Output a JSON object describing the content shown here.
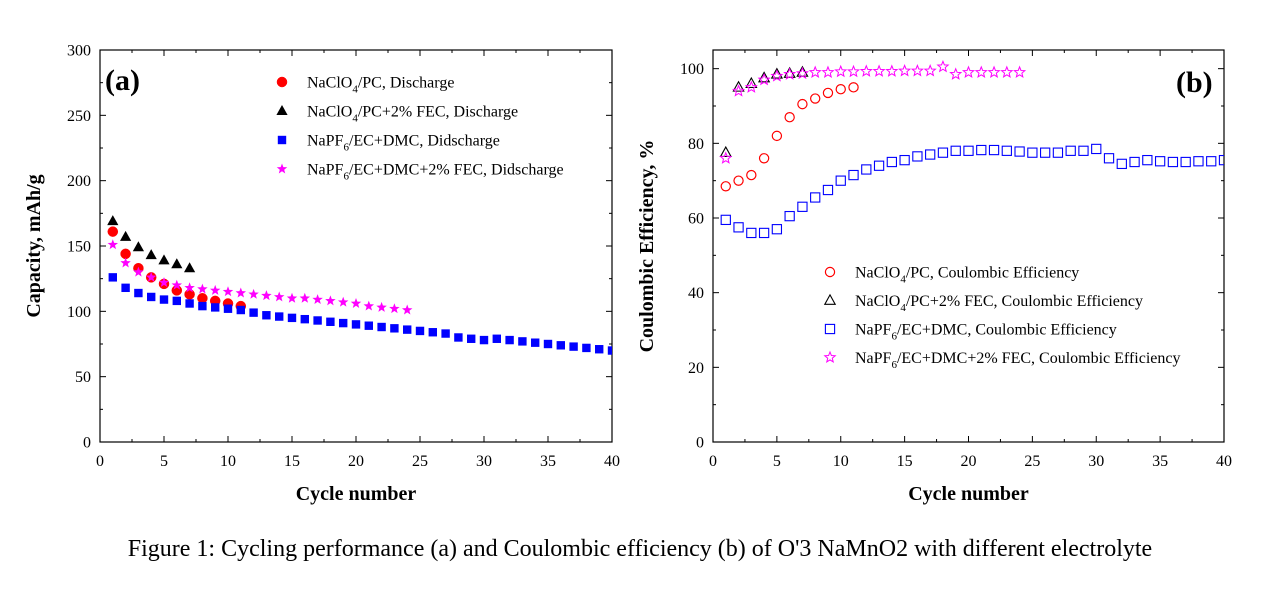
{
  "figure": {
    "caption": "Figure 1: Cycling performance (a) and Coulombic efficiency (b) of O'3 NaMnO2 with different electrolyte"
  },
  "chart_data": [
    {
      "id": "a",
      "type": "scatter",
      "panel_label": "(a)",
      "xlabel": "Cycle number",
      "ylabel": "Capacity, mAh/g",
      "xlim": [
        0,
        40
      ],
      "ylim": [
        0,
        300
      ],
      "xticks": [
        0,
        5,
        10,
        15,
        20,
        25,
        30,
        35,
        40
      ],
      "yticks": [
        0,
        50,
        100,
        150,
        200,
        250,
        300
      ],
      "legend_position": "top-right",
      "grid": false,
      "series": [
        {
          "name": "NaClO4/PC, Discharge",
          "name_parts": {
            "pre": "NaClO",
            "sub": "4",
            "post": "/PC, Discharge"
          },
          "marker": "circle-filled",
          "color": "#ff0000",
          "x": [
            1,
            2,
            3,
            4,
            5,
            6,
            7,
            8,
            9,
            10,
            11
          ],
          "y": [
            161,
            144,
            133,
            126,
            121,
            116,
            113,
            110,
            108,
            106,
            104
          ]
        },
        {
          "name": "NaClO4/PC+2% FEC, Discharge",
          "name_parts": {
            "pre": "NaClO",
            "sub": "4",
            "post": "/PC+2% FEC, Discharge"
          },
          "marker": "triangle-filled",
          "color": "#000000",
          "x": [
            1,
            2,
            3,
            4,
            5,
            6,
            7
          ],
          "y": [
            169,
            157,
            149,
            143,
            139,
            136,
            133
          ]
        },
        {
          "name": "NaPF6/EC+DMC, Didscharge",
          "name_parts": {
            "pre": "NaPF",
            "sub": "6",
            "post": "/EC+DMC, Didscharge"
          },
          "marker": "square-filled",
          "color": "#0000ff",
          "x": [
            1,
            2,
            3,
            4,
            5,
            6,
            7,
            8,
            9,
            10,
            11,
            12,
            13,
            14,
            15,
            16,
            17,
            18,
            19,
            20,
            21,
            22,
            23,
            24,
            25,
            26,
            27,
            28,
            29,
            30,
            31,
            32,
            33,
            34,
            35,
            36,
            37,
            38,
            39,
            40
          ],
          "y": [
            126,
            118,
            114,
            111,
            109,
            108,
            106,
            104,
            103,
            102,
            101,
            99,
            97,
            96,
            95,
            94,
            93,
            92,
            91,
            90,
            89,
            88,
            87,
            86,
            85,
            84,
            83,
            80,
            79,
            78,
            79,
            78,
            77,
            76,
            75,
            74,
            73,
            72,
            71,
            70
          ]
        },
        {
          "name": "NaPF6/EC+DMC+2% FEC, Didscharge",
          "name_parts": {
            "pre": "NaPF",
            "sub": "6",
            "post": "/EC+DMC+2% FEC, Didscharge"
          },
          "marker": "star",
          "color": "#ff00ff",
          "x": [
            1,
            2,
            3,
            4,
            5,
            6,
            7,
            8,
            9,
            10,
            11,
            12,
            13,
            14,
            15,
            16,
            17,
            18,
            19,
            20,
            21,
            22,
            23,
            24
          ],
          "y": [
            151,
            137,
            130,
            126,
            122,
            120,
            118,
            117,
            116,
            115,
            114,
            113,
            112,
            111,
            110,
            110,
            109,
            108,
            107,
            106,
            104,
            103,
            102,
            101
          ]
        }
      ]
    },
    {
      "id": "b",
      "type": "scatter",
      "panel_label": "(b)",
      "xlabel": "Cycle number",
      "ylabel": "Coulombic Efficiency, %",
      "xlim": [
        0,
        40
      ],
      "ylim": [
        0,
        105
      ],
      "xticks": [
        0,
        5,
        10,
        15,
        20,
        25,
        30,
        35,
        40
      ],
      "yticks": [
        0,
        20,
        40,
        60,
        80,
        100
      ],
      "legend_position": "bottom-right",
      "grid": false,
      "series": [
        {
          "name": "NaClO4/PC, Coulombic Efficiency",
          "name_parts": {
            "pre": "NaClO",
            "sub": "4",
            "post": "/PC, Coulombic Efficiency"
          },
          "marker": "circle-open",
          "color": "#ff0000",
          "x": [
            1,
            2,
            3,
            4,
            5,
            6,
            7,
            8,
            9,
            10,
            11
          ],
          "y": [
            68.5,
            70,
            71.5,
            76,
            82,
            87,
            90.5,
            92,
            93.5,
            94.5,
            95
          ]
        },
        {
          "name": "NaClO4/PC+2% FEC, Coulombic Efficiency",
          "name_parts": {
            "pre": "NaClO",
            "sub": "4",
            "post": "/PC+2% FEC, Coulombic Efficiency"
          },
          "marker": "triangle-open",
          "color": "#000000",
          "x": [
            1,
            2,
            3,
            4,
            5,
            6,
            7
          ],
          "y": [
            77.5,
            95,
            96,
            97.5,
            98.5,
            98.7,
            99
          ]
        },
        {
          "name": "NaPF6/EC+DMC, Coulombic Efficiency",
          "name_parts": {
            "pre": "NaPF",
            "sub": "6",
            "post": "/EC+DMC, Coulombic Efficiency"
          },
          "marker": "square-open",
          "color": "#0000ff",
          "x": [
            1,
            2,
            3,
            4,
            5,
            6,
            7,
            8,
            9,
            10,
            11,
            12,
            13,
            14,
            15,
            16,
            17,
            18,
            19,
            20,
            21,
            22,
            23,
            24,
            25,
            26,
            27,
            28,
            29,
            30,
            31,
            32,
            33,
            34,
            35,
            36,
            37,
            38,
            39,
            40
          ],
          "y": [
            59.5,
            57.5,
            56,
            56,
            57,
            60.5,
            63,
            65.5,
            67.5,
            70,
            71.5,
            73,
            74,
            75,
            75.5,
            76.5,
            77,
            77.5,
            78,
            78,
            78.2,
            78.2,
            78,
            77.8,
            77.5,
            77.5,
            77.5,
            78,
            78,
            78.5,
            76,
            74.5,
            75,
            75.5,
            75.2,
            75,
            75,
            75.2,
            75.2,
            75.5
          ]
        },
        {
          "name": "NaPF6/EC+DMC+2% FEC, Coulombic Efficiency",
          "name_parts": {
            "pre": "NaPF",
            "sub": "6",
            "post": "/EC+DMC+2% FEC, Coulombic Efficiency"
          },
          "marker": "star-open",
          "color": "#ff00ff",
          "x": [
            1,
            2,
            3,
            4,
            5,
            6,
            7,
            8,
            9,
            10,
            11,
            12,
            13,
            14,
            15,
            16,
            17,
            18,
            19,
            20,
            21,
            22,
            23,
            24
          ],
          "y": [
            76,
            94,
            95,
            97,
            98,
            98.5,
            98.7,
            99,
            99,
            99.2,
            99.2,
            99.3,
            99.3,
            99.3,
            99.4,
            99.4,
            99.4,
            100.5,
            98.5,
            99,
            99,
            99,
            99,
            99
          ]
        }
      ]
    }
  ]
}
